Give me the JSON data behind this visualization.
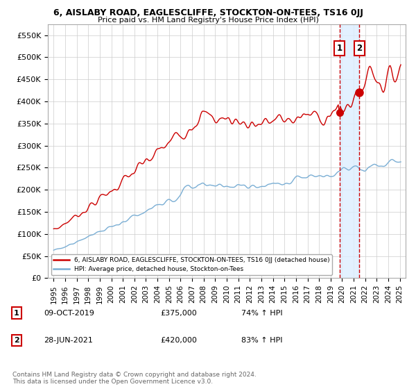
{
  "title": "6, AISLABY ROAD, EAGLESCLIFFE, STOCKTON-ON-TEES, TS16 0JJ",
  "subtitle": "Price paid vs. HM Land Registry's House Price Index (HPI)",
  "legend_label_red": "6, AISLABY ROAD, EAGLESCLIFFE, STOCKTON-ON-TEES, TS16 0JJ (detached house)",
  "legend_label_blue": "HPI: Average price, detached house, Stockton-on-Tees",
  "annotation1_date": "09-OCT-2019",
  "annotation1_price": "£375,000",
  "annotation1_hpi": "74% ↑ HPI",
  "annotation2_date": "28-JUN-2021",
  "annotation2_price": "£420,000",
  "annotation2_hpi": "83% ↑ HPI",
  "footer": "Contains HM Land Registry data © Crown copyright and database right 2024.\nThis data is licensed under the Open Government Licence v3.0.",
  "vline1_x": 2019.77,
  "vline2_x": 2021.49,
  "marker1_y": 375000,
  "marker2_y": 420000,
  "ylim_min": 0,
  "ylim_max": 575000,
  "xlim_min": 1994.5,
  "xlim_max": 2025.5,
  "red_color": "#cc0000",
  "blue_color": "#7aaed4",
  "vline_color": "#cc0000",
  "shade_color": "#ddeeff",
  "yticks": [
    0,
    50000,
    100000,
    150000,
    200000,
    250000,
    300000,
    350000,
    400000,
    450000,
    500000,
    550000
  ],
  "ytick_labels": [
    "£0",
    "£50K",
    "£100K",
    "£150K",
    "£200K",
    "£250K",
    "£300K",
    "£350K",
    "£400K",
    "£450K",
    "£500K",
    "£550K"
  ],
  "xticks": [
    1995,
    1996,
    1997,
    1998,
    1999,
    2000,
    2001,
    2002,
    2003,
    2004,
    2005,
    2006,
    2007,
    2008,
    2009,
    2010,
    2011,
    2012,
    2013,
    2014,
    2015,
    2016,
    2017,
    2018,
    2019,
    2020,
    2021,
    2022,
    2023,
    2024,
    2025
  ]
}
